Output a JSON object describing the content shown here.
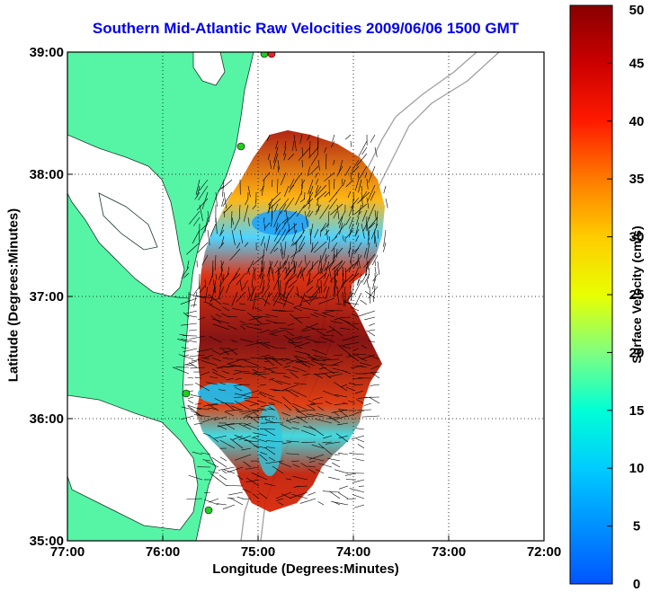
{
  "chart_data": {
    "type": "heatmap",
    "title": "Southern Mid-Atlantic Raw Velocities 2009/06/06 1500 GMT",
    "xlabel": "Longitude (Degrees:Minutes)",
    "ylabel": "Latitude (Degrees:Minutes)",
    "x_ticks": [
      "77:00",
      "76:00",
      "75:00",
      "74:00",
      "73:00",
      "72:00"
    ],
    "y_ticks": [
      "39:00",
      "38:00",
      "37:00",
      "36:00",
      "35:00"
    ],
    "xlim": [
      -77,
      -72
    ],
    "ylim": [
      35,
      39
    ],
    "grid": true,
    "colorbar": {
      "label": "Surface Velocity (cm/s)",
      "range": [
        0,
        50
      ],
      "ticks": [
        "50",
        "45",
        "40",
        "35",
        "30",
        "25",
        "20",
        "15",
        "10",
        "5",
        "0"
      ]
    },
    "colors": {
      "land": "#55f5a5",
      "ocean": "#ffffff",
      "title": "#0000ee",
      "station": "#22cc22",
      "station_active": "#ee2222",
      "bathymetry": "#a0a0a0",
      "grid": "#000000"
    }
  }
}
